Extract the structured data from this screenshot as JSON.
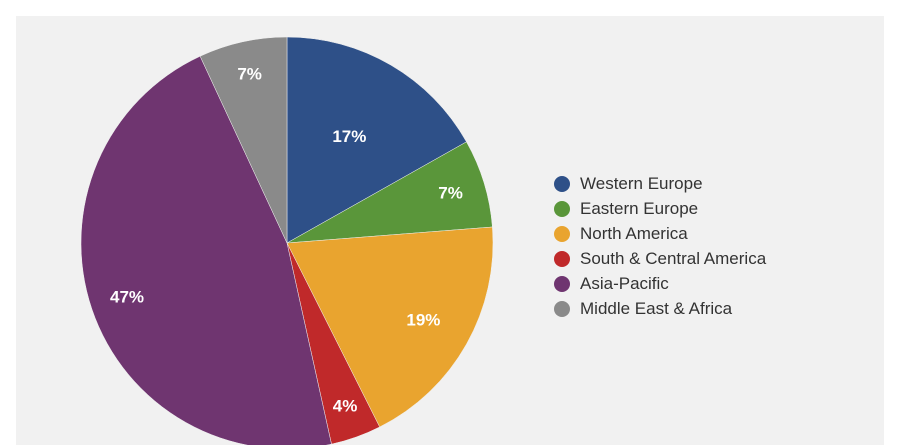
{
  "chart_data": {
    "type": "pie",
    "title": "",
    "start_angle_deg": 0,
    "direction": "clockwise",
    "legend_position": "right",
    "slices": [
      {
        "label": "Western Europe",
        "value": 17,
        "display": "17%",
        "color": "#2e5088"
      },
      {
        "label": "Eastern Europe",
        "value": 7,
        "display": "7%",
        "color": "#5a963a"
      },
      {
        "label": "North America",
        "value": 19,
        "display": "19%",
        "color": "#e9a42f"
      },
      {
        "label": "South & Central America",
        "value": 4,
        "display": "4%",
        "color": "#c0292a"
      },
      {
        "label": "Asia-Pacific",
        "value": 47,
        "display": "47%",
        "color": "#6f3570"
      },
      {
        "label": "Middle East & Africa",
        "value": 7,
        "display": "7%",
        "color": "#8a8a8a"
      }
    ]
  }
}
